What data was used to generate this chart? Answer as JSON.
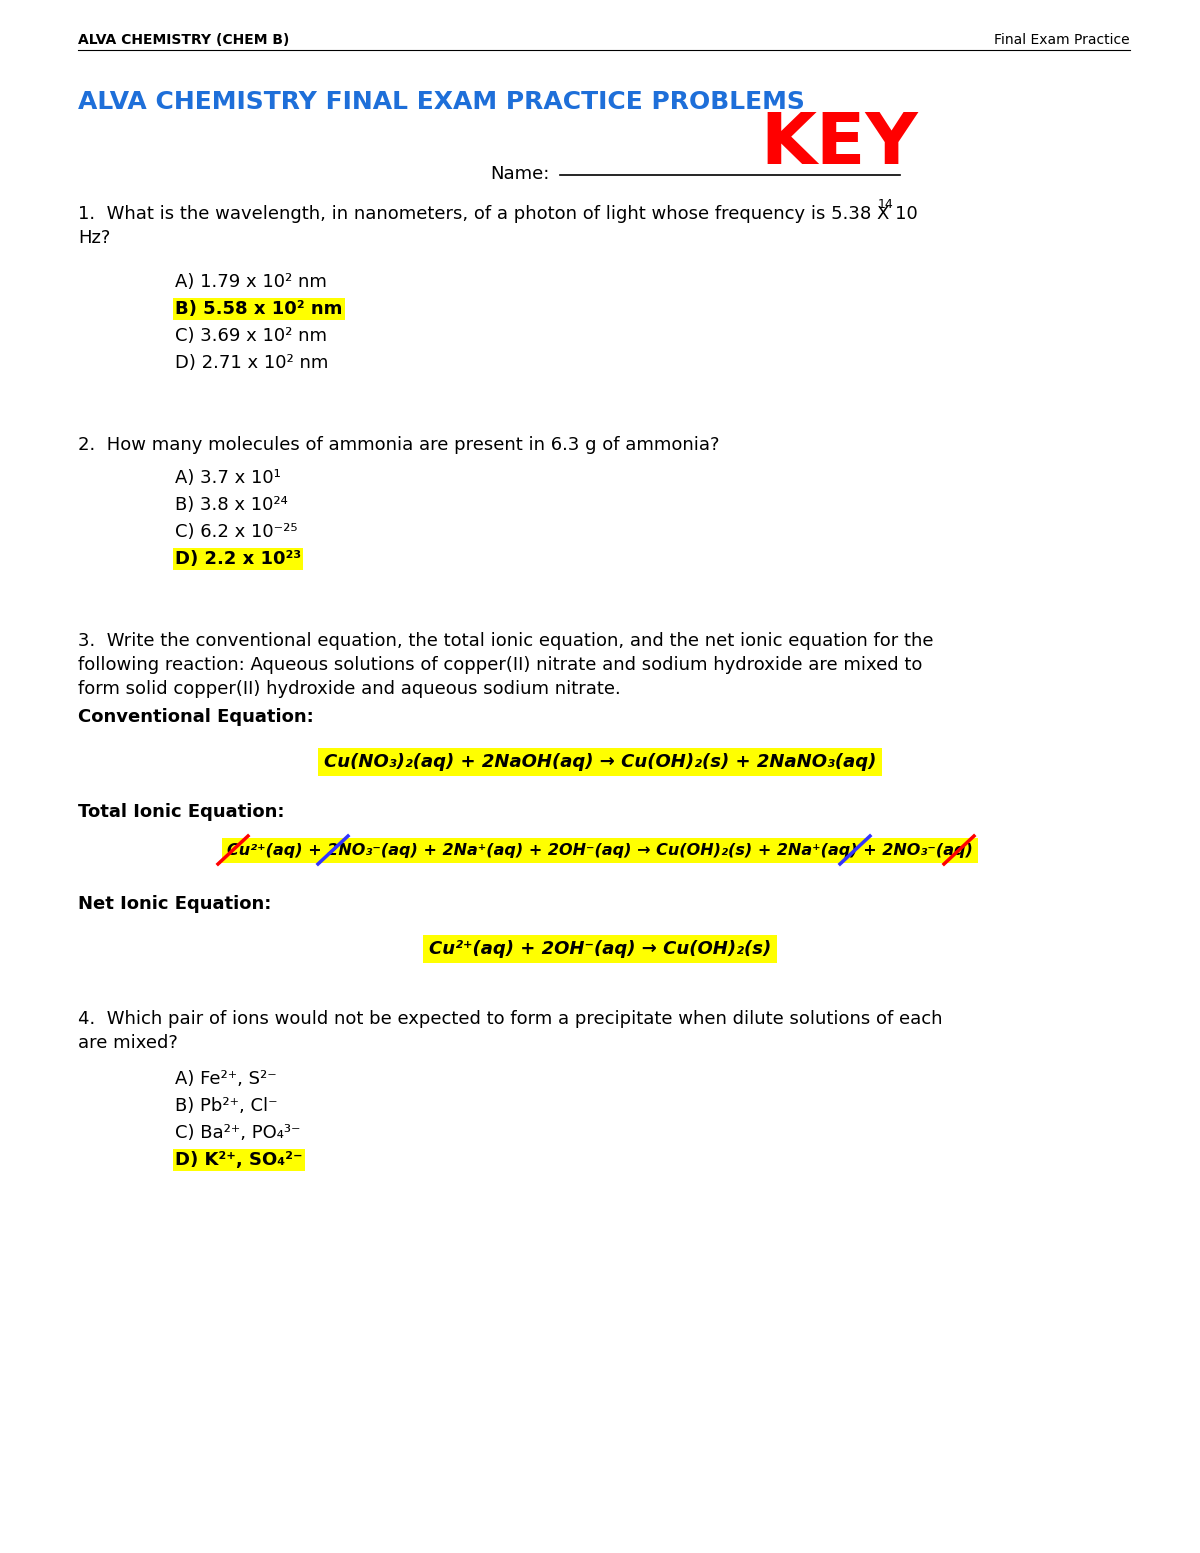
{
  "page_width": 12.0,
  "page_height": 15.53,
  "bg_color": "#ffffff",
  "header_left": "ALVA CHEMISTRY (CHEM B)",
  "header_right": "Final Exam Practice",
  "title": "ALVA CHEMISTRY FINAL EXAM PRACTICE PROBLEMS",
  "title_color": "#1E6FD9",
  "key_text": "KEY",
  "key_color": "#FF0000",
  "q1_choices": [
    "A) 1.79 x 10² nm",
    "B) 5.58 x 10² nm",
    "C) 3.69 x 10² nm",
    "D) 2.71 x 10² nm"
  ],
  "q1_answer_idx": 1,
  "q2_text": "2.  How many molecules of ammonia are present in 6.3 g of ammonia?",
  "q2_choices": [
    "A) 3.7 x 10¹",
    "B) 3.8 x 10²⁴",
    "C) 6.2 x 10⁻²⁵",
    "D) 2.2 x 10²³"
  ],
  "q2_answer_idx": 3,
  "q3_text": "3.  Write the conventional equation, the total ionic equation, and the net ionic equation for the\nfollowing reaction: Aqueous solutions of copper(II) nitrate and sodium hydroxide are mixed to\nform solid copper(II) hydroxide and aqueous sodium nitrate.",
  "conv_label": "Conventional Equation:",
  "conv_eq": "Cu(NO₃)₂(aq) + 2NaOH(aq) → Cu(OH)₂(s) + 2NaNO₃(aq)",
  "total_label": "Total Ionic Equation:",
  "total_eq": "Cu²⁺(aq) + 2NO₃⁻(aq) + 2Na⁺(aq) + 2OH⁻(aq) → Cu(OH)₂(s) + 2Na⁺(aq) + 2NO₃⁻(aq)",
  "net_label": "Net Ionic Equation:",
  "net_eq": "Cu²⁺(aq) + 2OH⁻(aq) → Cu(OH)₂(s)",
  "q4_text": "4.  Which pair of ions would not be expected to form a precipitate when dilute solutions of each\nare mixed?",
  "q4_choices": [
    "A) Fe²⁺, S²⁻",
    "B) Pb²⁺, Cl⁻",
    "C) Ba²⁺, PO₄³⁻",
    "D) K²⁺, SO₄²⁻"
  ],
  "q4_answer_idx": 3,
  "highlight_color": "#FFFF00"
}
